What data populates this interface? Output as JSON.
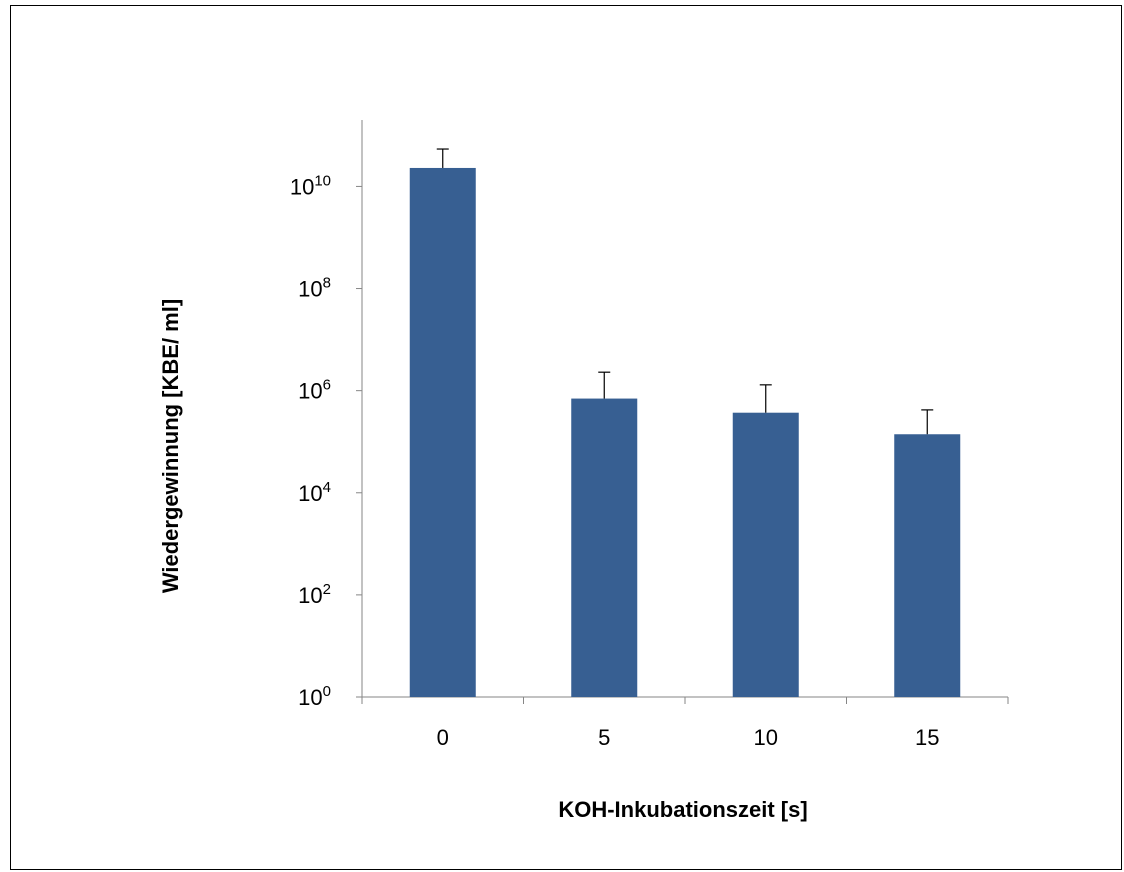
{
  "chart_data": {
    "type": "bar",
    "categories": [
      "0",
      "5",
      "10",
      "15"
    ],
    "values": [
      23000000000,
      700000,
      370000,
      140000
    ],
    "error_upper": [
      54000000000,
      2300000,
      1300000,
      420000
    ],
    "xlabel": "KOH-Inkubationszeit [s]",
    "ylabel": "Wiedergewinnung [KBE/ ml]",
    "ylim": [
      1,
      200000000000
    ],
    "yscale": "log",
    "yticks": [
      {
        "base": "10",
        "exp": "0"
      },
      {
        "base": "10",
        "exp": "2"
      },
      {
        "base": "10",
        "exp": "4"
      },
      {
        "base": "10",
        "exp": "6"
      },
      {
        "base": "10",
        "exp": "8"
      },
      {
        "base": "10",
        "exp": "10"
      }
    ],
    "bar_color": "#375F92",
    "grid": false,
    "legend": "none"
  }
}
